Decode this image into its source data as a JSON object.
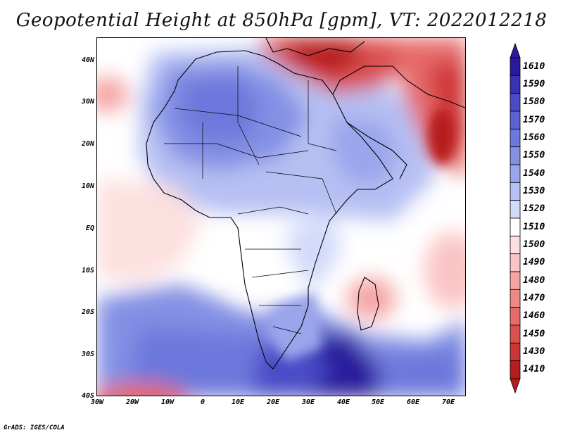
{
  "title": "Geopotential Height at 850hPa [gpm], VT: 2022012218",
  "footer": "GrADS: IGES/COLA",
  "map": {
    "latitude_labels": [
      "40N",
      "30N",
      "20N",
      "10N",
      "EQ",
      "10S",
      "20S",
      "30S",
      "40S"
    ],
    "longitude_labels": [
      "30W",
      "20W",
      "10W",
      "0",
      "10E",
      "20E",
      "30E",
      "40E",
      "50E",
      "60E",
      "70E"
    ]
  },
  "colorbar": {
    "levels": [
      "1610",
      "1590",
      "1580",
      "1570",
      "1560",
      "1550",
      "1540",
      "1530",
      "1520",
      "1510",
      "1500",
      "1490",
      "1480",
      "1470",
      "1460",
      "1450",
      "1430",
      "1410"
    ],
    "colors": [
      "#2a1a9b",
      "#3a32b4",
      "#4a4bc7",
      "#5c62d3",
      "#6d78dc",
      "#8390e4",
      "#9aa6ec",
      "#b6c0f3",
      "#d3dafa",
      "#ffffff",
      "#fde0e0",
      "#fbc4c4",
      "#f6a5a5",
      "#ef8787",
      "#e66b6b",
      "#dc5050",
      "#cf3434",
      "#b81d1d"
    ]
  },
  "chart_data": {
    "type": "heatmap",
    "title": "Geopotential Height at 850hPa [gpm], VT: 2022012218",
    "variable": "Geopotential Height",
    "level": "850hPa",
    "units": "gpm",
    "valid_time": "2022012218",
    "lon_range": [
      -30,
      75
    ],
    "lat_range": [
      -40,
      45
    ],
    "color_scale_levels": [
      1410,
      1430,
      1450,
      1460,
      1470,
      1480,
      1490,
      1500,
      1510,
      1520,
      1530,
      1540,
      1550,
      1560,
      1570,
      1580,
      1590,
      1610
    ],
    "features": [
      {
        "region": "Southern Ocean south of South Africa",
        "value_gpm": 1590
      },
      {
        "region": "Sahara / North Africa",
        "value_gpm": 1560
      },
      {
        "region": "Eastern Mediterranean / Turkey",
        "value_gpm": 1430
      },
      {
        "region": "Iran / Afghanistan",
        "value_gpm": 1450
      },
      {
        "region": "Off Madagascar (east)",
        "value_gpm": 1480
      },
      {
        "region": "Far southwest corner (South Atlantic)",
        "value_gpm": 1470
      },
      {
        "region": "Equatorial Atlantic",
        "value_gpm": 1500
      }
    ]
  }
}
